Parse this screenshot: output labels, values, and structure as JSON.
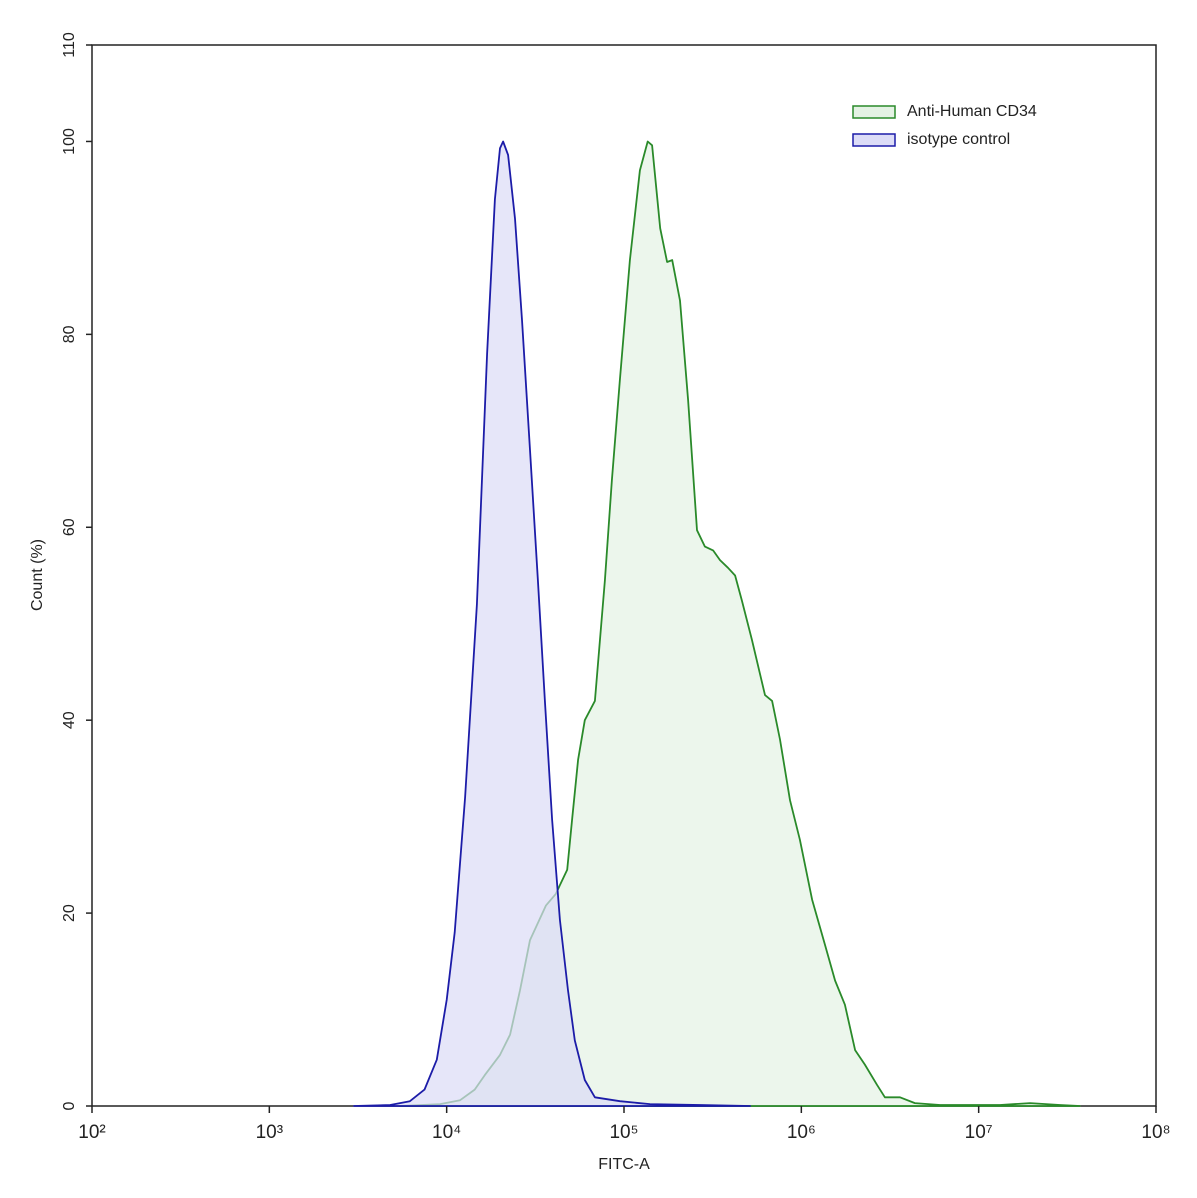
{
  "chart_data": {
    "type": "area",
    "xlabel": "FITC-A",
    "ylabel": "Count  (%)",
    "xscale": "log",
    "xlim": [
      100,
      100000000
    ],
    "xticks": [
      {
        "value": 100,
        "label": "10²"
      },
      {
        "value": 1000,
        "label": "10³"
      },
      {
        "value": 10000,
        "label": "10⁴"
      },
      {
        "value": 100000,
        "label": "10⁵"
      },
      {
        "value": 1000000,
        "label": "10⁶"
      },
      {
        "value": 10000000,
        "label": "10⁷"
      },
      {
        "value": 100000000,
        "label": "10⁸"
      }
    ],
    "ylim": [
      0,
      110
    ],
    "yticks": [
      0,
      20,
      40,
      60,
      80,
      100,
      110
    ],
    "grid": false,
    "legend": "upper right",
    "series": [
      {
        "name": "Anti-Human CD34",
        "color": "#2a8a2a",
        "fill": "#e4f2e4",
        "x": [
          5460,
          9180,
          11900,
          14400,
          16400,
          20000,
          22800,
          25900,
          29500,
          36300,
          41300,
          43500,
          47800,
          51000,
          55100,
          60100,
          68500,
          78000,
          85500,
          94800,
          108000,
          123000,
          136000,
          144000,
          160000,
          175000,
          187000,
          207000,
          230000,
          258000,
          286000,
          318000,
          348000,
          386000,
          423000,
          462000,
          527000,
          624000,
          684000,
          758000,
          863000,
          982000,
          1150000,
          1360000,
          1550000,
          1760000,
          2010000,
          2280000,
          2670000,
          2960000,
          3600000,
          4370000,
          6050000,
          13200000,
          19500000,
          28700000,
          37200000
        ],
        "values": [
          0,
          0.2,
          0.6,
          1.7,
          3.2,
          5.3,
          7.4,
          12,
          17.2,
          20.8,
          22,
          22.9,
          24.5,
          29.7,
          35.9,
          40,
          42,
          54.5,
          64.9,
          75.3,
          87.7,
          97,
          100,
          99.6,
          91,
          87.5,
          87.7,
          83.5,
          73.2,
          59.7,
          58,
          57.6,
          56.6,
          55.8,
          55,
          52.4,
          48.3,
          42.6,
          42,
          38,
          31.7,
          27.6,
          21.4,
          16.7,
          13,
          10.5,
          5.8,
          4.3,
          2.2,
          0.9,
          0.9,
          0.3,
          0.1,
          0.1,
          0.3,
          0.1,
          0
        ]
      },
      {
        "name": "isotype control",
        "color": "#1c1ca8",
        "fill": "#dcdcf7",
        "x": [
          3000,
          4800,
          6200,
          7500,
          8800,
          10000,
          11100,
          12700,
          14800,
          16900,
          18700,
          20000,
          20800,
          22200,
          24300,
          26600,
          29500,
          32700,
          35800,
          39300,
          43500,
          48300,
          52800,
          60100,
          68500,
          94800,
          140000,
          269000,
          514000
        ],
        "values": [
          0,
          0.1,
          0.5,
          1.7,
          4.8,
          11,
          18,
          32,
          52,
          78,
          94,
          99.3,
          100,
          98.6,
          92,
          81.5,
          68,
          54.5,
          42,
          29.7,
          19.3,
          12,
          6.8,
          2.7,
          0.9,
          0.5,
          0.2,
          0.1,
          0
        ]
      }
    ]
  }
}
